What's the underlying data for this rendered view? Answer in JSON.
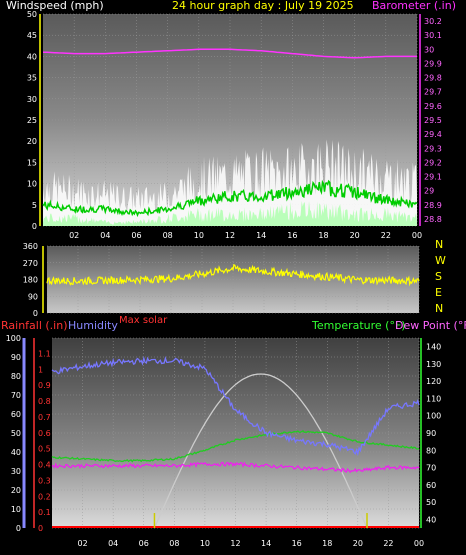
{
  "header": {
    "left": "Windspeed (mph)",
    "center": "24 hour graph day : July 19 2025",
    "right": "Barometer (.in)"
  },
  "compass": [
    "N",
    "W",
    "S",
    "E",
    "N"
  ],
  "bottom_header": {
    "rainfall": "Rainfall (.in)",
    "humidity": "Humidity",
    "max_solar": "Max solar",
    "temperature": "Temperature (°F)",
    "dewpoint": "Dew Point (°F)"
  },
  "colors": {
    "windspeed": "#ffffff",
    "wind_avg": "#00cc00",
    "wind_low": "#aaffaa",
    "barometer": "#ff33ff",
    "direction": "#ffff00",
    "humidity": "#7777ff",
    "temperature": "#22cc22",
    "dewpoint": "#ee22ee",
    "solar": "#cccccc",
    "rainfall": "#ff0000",
    "axis_yellow": "#ffff00",
    "axis_purple": "#ff66ff",
    "axis_green": "#33ff33",
    "axis_blue": "#8888ff",
    "axis_red": "#ff3333"
  },
  "chart_data": [
    {
      "type": "line",
      "x_ticks": [
        "02",
        "04",
        "06",
        "08",
        "10",
        "12",
        "14",
        "16",
        "18",
        "20",
        "22",
        "00"
      ],
      "y_left_ticks": [
        0,
        5,
        10,
        15,
        20,
        25,
        30,
        35,
        40,
        45,
        50
      ],
      "y_right_ticks": [
        "28.8",
        "28.9",
        "29",
        "29.1",
        "29.2",
        "29.3",
        "29.4",
        "29.5",
        "29.6",
        "29.7",
        "29.8",
        "29.9",
        "30",
        "30.1",
        "30.2"
      ],
      "ylim_left": [
        0,
        50
      ],
      "ylim_right": [
        28.75,
        30.25
      ],
      "hours": [
        0,
        2,
        4,
        6,
        8,
        10,
        12,
        14,
        16,
        18,
        20,
        22,
        24
      ],
      "series": [
        {
          "key": "gust",
          "values": [
            10,
            9,
            8,
            7,
            8,
            12,
            13,
            14,
            14,
            16,
            14,
            13,
            11
          ]
        },
        {
          "key": "avg",
          "values": [
            5,
            4,
            4,
            3,
            4,
            6,
            7,
            7,
            8,
            9,
            8,
            6,
            5
          ]
        },
        {
          "key": "low",
          "values": [
            2,
            2,
            1,
            1,
            2,
            3,
            3,
            3,
            4,
            4,
            3,
            3,
            2
          ]
        },
        {
          "key": "barometer",
          "values": [
            29.98,
            29.97,
            29.97,
            29.98,
            29.99,
            30.0,
            30.0,
            29.99,
            29.97,
            29.95,
            29.94,
            29.95,
            29.95
          ]
        }
      ]
    },
    {
      "type": "line",
      "y_ticks": [
        0,
        90,
        180,
        270,
        360
      ],
      "ylim": [
        0,
        360
      ],
      "hours": [
        0,
        2,
        4,
        6,
        8,
        10,
        12,
        14,
        16,
        18,
        20,
        22,
        24
      ],
      "series": [
        {
          "key": "direction",
          "values": [
            175,
            172,
            175,
            180,
            185,
            210,
            240,
            225,
            210,
            195,
            178,
            175,
            172
          ]
        }
      ]
    },
    {
      "type": "line",
      "x_ticks": [
        "02",
        "04",
        "06",
        "08",
        "10",
        "12",
        "14",
        "16",
        "18",
        "20",
        "22",
        "00"
      ],
      "y_humidity_ticks": [
        0,
        10,
        20,
        30,
        40,
        50,
        60,
        70,
        80,
        90,
        100
      ],
      "y_rain_ticks": [
        0,
        0.1,
        0.2,
        0.3,
        0.4,
        0.5,
        0.6,
        0.7,
        0.8,
        0.9,
        1,
        1.1
      ],
      "y_temp_ticks": [
        40,
        50,
        60,
        70,
        80,
        90,
        100,
        110,
        120,
        130,
        140
      ],
      "ylim_humidity": [
        0,
        100
      ],
      "ylim_temp": [
        35,
        145
      ],
      "hours": [
        0,
        2,
        4,
        6,
        8,
        10,
        12,
        14,
        16,
        18,
        20,
        22,
        24
      ],
      "series": [
        {
          "key": "humidity",
          "values": [
            82,
            85,
            87,
            88,
            88,
            84,
            62,
            50,
            46,
            44,
            40,
            63,
            66
          ]
        },
        {
          "key": "temperature",
          "values": [
            76,
            75,
            74,
            74,
            75,
            80,
            86,
            89,
            91,
            90,
            85,
            83,
            81
          ]
        },
        {
          "key": "dewpoint",
          "values": [
            71,
            71,
            71,
            71,
            71,
            72,
            72,
            71,
            70,
            69,
            68,
            70,
            70
          ]
        },
        {
          "key": "solar",
          "values": [
            0,
            0,
            0,
            0,
            0,
            35,
            115,
            155,
            105,
            40,
            0,
            0,
            0
          ]
        },
        {
          "key": "rainfall",
          "values": [
            0,
            0,
            0,
            0,
            0,
            0,
            0,
            0,
            0,
            0,
            0,
            0,
            0
          ]
        }
      ],
      "markers_hours": [
        6.7,
        20.6
      ]
    }
  ]
}
